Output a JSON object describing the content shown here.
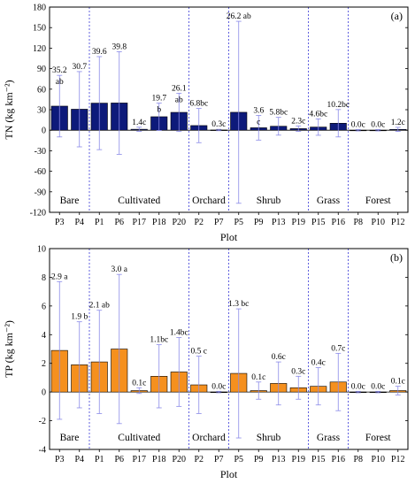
{
  "chart_data": [
    {
      "type": "bar",
      "panel_label": "(a)",
      "xlabel": "Plot",
      "ylabel": "TN (kg km⁻²)",
      "ylim": [
        -120,
        180
      ],
      "yticks": [
        -120,
        -90,
        -60,
        -30,
        0,
        30,
        60,
        90,
        120,
        150,
        180
      ],
      "bar_color": "#0d1a7a",
      "categories": [
        "P3",
        "P4",
        "P1",
        "P6",
        "P17",
        "P18",
        "P20",
        "P2",
        "P7",
        "P5",
        "P9",
        "P13",
        "P19",
        "P15",
        "P16",
        "P8",
        "P10",
        "P12"
      ],
      "values": [
        35.2,
        30.7,
        39.6,
        39.8,
        1.4,
        19.7,
        26.1,
        6.8,
        0.3,
        26.2,
        3.6,
        5.8,
        2.3,
        4.6,
        10.2,
        0.0,
        0.0,
        1.2
      ],
      "error": [
        45,
        55,
        68,
        75,
        3,
        20,
        28,
        25,
        1,
        133,
        18,
        13,
        4,
        12,
        20,
        1,
        1,
        3
      ],
      "labels": [
        "35.2",
        "30.7",
        "39.6",
        "39.8",
        "1.4c",
        "19.7",
        "26.1",
        "6.8bc",
        "0.3c",
        "26.2 ab",
        "3.6",
        "5.8bc",
        "2.3c",
        "4.6bc",
        "10.2bc",
        "0.0c",
        "0.0c",
        "1.2c"
      ],
      "letters": [
        "ab",
        "",
        "",
        "",
        "",
        "b",
        "ab",
        "",
        "",
        "",
        "c",
        "",
        "",
        "",
        "",
        "",
        "",
        ""
      ],
      "groups": [
        {
          "name": "Bare",
          "start": 0,
          "end": 1
        },
        {
          "name": "Cultivated",
          "start": 2,
          "end": 6
        },
        {
          "name": "Orchard",
          "start": 7,
          "end": 8
        },
        {
          "name": "Shrub",
          "start": 9,
          "end": 12
        },
        {
          "name": "Grass",
          "start": 13,
          "end": 14
        },
        {
          "name": "Forest",
          "start": 15,
          "end": 17
        }
      ]
    },
    {
      "type": "bar",
      "panel_label": "(b)",
      "xlabel": "Plot",
      "ylabel": "TP (kg km⁻²)",
      "ylim": [
        -4,
        10
      ],
      "yticks": [
        -4,
        -2,
        0,
        2,
        4,
        6,
        8,
        10
      ],
      "bar_color": "#f5901e",
      "categories": [
        "P3",
        "P4",
        "P1",
        "P6",
        "P17",
        "P18",
        "P20",
        "P2",
        "P7",
        "P5",
        "P9",
        "P13",
        "P19",
        "P15",
        "P16",
        "P8",
        "P10",
        "P12"
      ],
      "values": [
        2.9,
        1.9,
        2.1,
        3.0,
        0.1,
        1.1,
        1.4,
        0.5,
        0.0,
        1.3,
        0.1,
        0.6,
        0.3,
        0.4,
        0.7,
        0.0,
        0.0,
        0.1
      ],
      "error": [
        4.8,
        3.0,
        3.6,
        5.2,
        0.2,
        2.2,
        2.4,
        2.0,
        0.05,
        4.5,
        0.6,
        1.5,
        0.8,
        1.3,
        2.0,
        0.05,
        0.05,
        0.3
      ],
      "labels": [
        "2.9 a",
        "1.9 b",
        "2.1 ab",
        "3.0 a",
        "0.1c",
        "1.1bc",
        "1.4bc",
        "0.5 c",
        "0.0c",
        "1.3 bc",
        "0.1c",
        "0.6c",
        "0.3c",
        "0.4c",
        "0.7c",
        "0.0c",
        "0.0c",
        "0.1c"
      ],
      "letters": [
        "",
        "",
        "",
        "",
        "",
        "",
        "",
        "",
        "",
        "",
        "",
        "",
        "",
        "",
        "",
        "",
        "",
        ""
      ],
      "groups": [
        {
          "name": "Bare",
          "start": 0,
          "end": 1
        },
        {
          "name": "Cultivated",
          "start": 2,
          "end": 6
        },
        {
          "name": "Orchard",
          "start": 7,
          "end": 8
        },
        {
          "name": "Shrub",
          "start": 9,
          "end": 12
        },
        {
          "name": "Grass",
          "start": 13,
          "end": 14
        },
        {
          "name": "Forest",
          "start": 15,
          "end": 17
        }
      ]
    }
  ]
}
